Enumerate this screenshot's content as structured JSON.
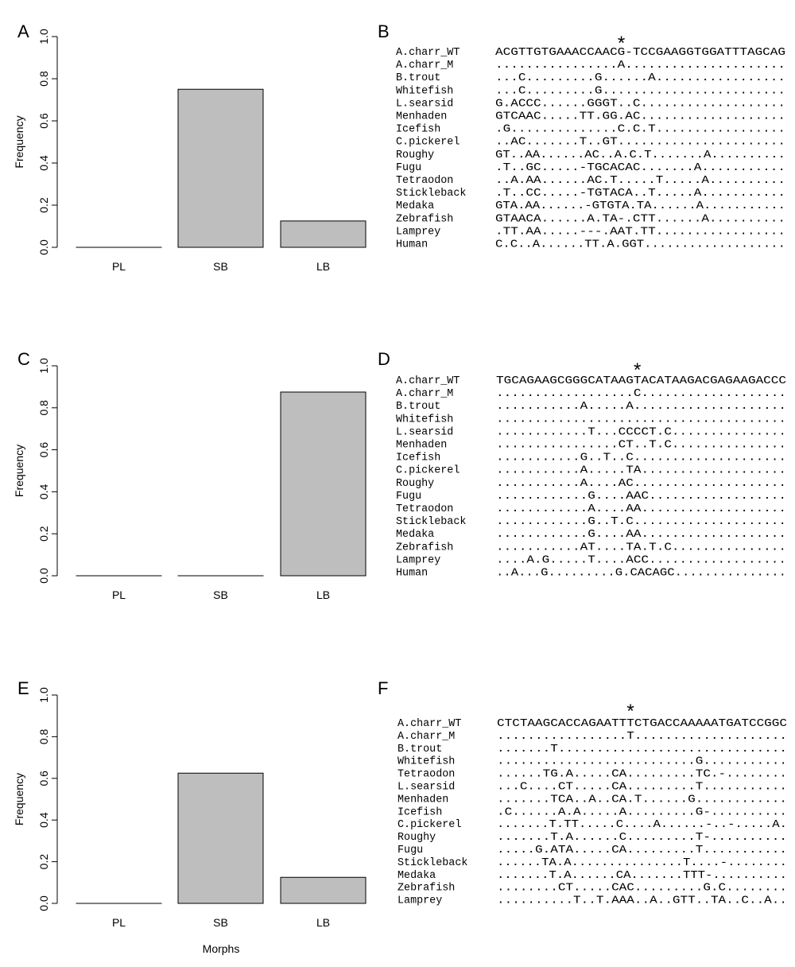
{
  "chart_data": [
    {
      "panel": "A",
      "type": "bar",
      "categories": [
        "PL",
        "SB",
        "LB"
      ],
      "values": [
        0.0,
        0.75,
        0.125
      ],
      "xlabel": "",
      "ylabel": "Frequency",
      "ylim": [
        0,
        1
      ],
      "yticks": [
        "0.0",
        "0.2",
        "0.4",
        "0.6",
        "0.8",
        "1.0"
      ],
      "bar_color": "#bebebe"
    },
    {
      "panel": "C",
      "type": "bar",
      "categories": [
        "PL",
        "SB",
        "LB"
      ],
      "values": [
        0.0,
        0.0,
        0.875
      ],
      "xlabel": "",
      "ylabel": "Frequency",
      "ylim": [
        0,
        1
      ],
      "yticks": [
        "0.0",
        "0.2",
        "0.4",
        "0.6",
        "0.8",
        "1.0"
      ],
      "bar_color": "#bebebe"
    },
    {
      "panel": "E",
      "type": "bar",
      "categories": [
        "PL",
        "SB",
        "LB"
      ],
      "values": [
        0.0,
        0.625,
        0.125
      ],
      "xlabel": "Morphs",
      "ylabel": "Frequency",
      "ylim": [
        0,
        1
      ],
      "yticks": [
        "0.0",
        "0.2",
        "0.4",
        "0.6",
        "0.8",
        "1.0"
      ],
      "bar_color": "#bebebe"
    }
  ],
  "alignments": [
    {
      "panel": "B",
      "marker": "*",
      "rows": [
        {
          "name": "A.charr_WT",
          "seq": "ACGTTGTGAAACCAACG-TCCGAAGGTGGATTTAGCAG"
        },
        {
          "name": "A.charr_M",
          "seq": "................A....................."
        },
        {
          "name": "B.trout",
          "seq": "...C.........G......A................."
        },
        {
          "name": "Whitefish",
          "seq": "...C.........G........................"
        },
        {
          "name": "L.searsid",
          "seq": "G.ACCC......GGGT..C..................."
        },
        {
          "name": "Menhaden",
          "seq": "GTCAAC.....TT.GG.AC..................."
        },
        {
          "name": "Icefish",
          "seq": ".G..............C.C.T................."
        },
        {
          "name": "C.pickerel",
          "seq": "..AC.......T..GT......................"
        },
        {
          "name": "Roughy",
          "seq": "GT..AA......AC..A.C.T.......A.........."
        },
        {
          "name": "Fugu",
          "seq": ".T..GC.....-TGCACAC.......A..........."
        },
        {
          "name": "Tetraodon",
          "seq": "..A.AA......AC.T.....T.....A.........."
        },
        {
          "name": "Stickleback",
          "seq": ".T..CC.....-TGTACA..T.....A..........."
        },
        {
          "name": "Medaka",
          "seq": "GTA.AA......-GTGTA.TA......A..........."
        },
        {
          "name": "Zebrafish",
          "seq": "GTAACA......A.TA-.CTT......A.........."
        },
        {
          "name": "Lamprey",
          "seq": ".TT.AA.....---.AAT.TT................."
        },
        {
          "name": "Human",
          "seq": "C.C..A......TT.A.GGT..................."
        }
      ]
    },
    {
      "panel": "D",
      "marker": "*",
      "rows": [
        {
          "name": "A.charr_WT",
          "seq": "TGCAGAAGCGGGCATAAGTACATAAGACGAGAAGACCC"
        },
        {
          "name": "A.charr_M",
          "seq": "..................C..................."
        },
        {
          "name": "B.trout",
          "seq": "...........A.....A...................."
        },
        {
          "name": "Whitefish",
          "seq": "......................................"
        },
        {
          "name": "L.searsid",
          "seq": "............T...CCCCT.C..............."
        },
        {
          "name": "Menhaden",
          "seq": "................CT..T.C..............."
        },
        {
          "name": "Icefish",
          "seq": "...........G..T..C...................."
        },
        {
          "name": "C.pickerel",
          "seq": "...........A.....TA..................."
        },
        {
          "name": "Roughy",
          "seq": "...........A....AC...................."
        },
        {
          "name": "Fugu",
          "seq": "............G....AAC.................."
        },
        {
          "name": "Tetraodon",
          "seq": "............A....AA..................."
        },
        {
          "name": "Stickleback",
          "seq": "............G..T.C...................."
        },
        {
          "name": "Medaka",
          "seq": "............G....AA..................."
        },
        {
          "name": "Zebrafish",
          "seq": "...........AT....TA.T.C..............."
        },
        {
          "name": "Lamprey",
          "seq": "....A.G.....T....ACC.................."
        },
        {
          "name": "Human",
          "seq": "..A...G.........G.CACAGC..............."
        }
      ]
    },
    {
      "panel": "F",
      "marker": "*",
      "rows": [
        {
          "name": "A.charr_WT",
          "seq": "CTCTAAGCACCAGAATTTCTGACCAAAAATGATCCGGC"
        },
        {
          "name": "A.charr_M",
          "seq": ".................T...................."
        },
        {
          "name": "B.trout",
          "seq": ".......T.............................."
        },
        {
          "name": "Whitefish",
          "seq": "..........................G..........."
        },
        {
          "name": "Tetraodon",
          "seq": "......TG.A.....CA.........TC.-........"
        },
        {
          "name": "L.searsid",
          "seq": "...C....CT.....CA.........T..........."
        },
        {
          "name": "Menhaden",
          "seq": ".......TCA..A..CA.T......G............"
        },
        {
          "name": "Icefish",
          "seq": ".C......A.A.....A.........G-.........."
        },
        {
          "name": "C.pickerel",
          "seq": ".......T.TT.....C....A......-..-.....A."
        },
        {
          "name": "Roughy",
          "seq": ".......T.A......C.........T-.........."
        },
        {
          "name": "Fugu",
          "seq": ".....G.ATA.....CA.........T..........."
        },
        {
          "name": "Stickleback",
          "seq": "......TA.A...............T....-........"
        },
        {
          "name": "Medaka",
          "seq": ".......T.A......CA.......TTT-.........."
        },
        {
          "name": "Zebrafish",
          "seq": "........CT.....CAC.........G.C........"
        },
        {
          "name": "Lamprey",
          "seq": "..........T..T.AAA..A..GTT..TA..C..A.."
        }
      ]
    }
  ]
}
